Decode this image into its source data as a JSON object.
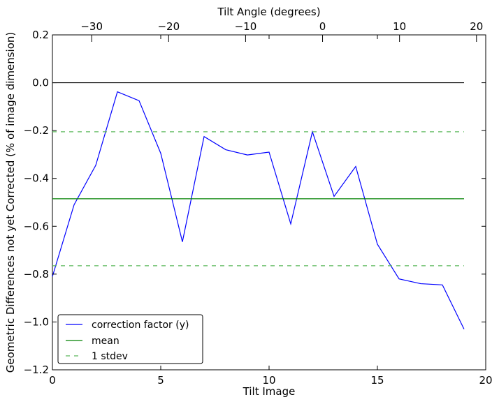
{
  "chart_data": {
    "type": "line",
    "xlabel": "Tilt Image",
    "ylabel": "Geometric Differences not yet Corrected (% of image dimension)",
    "top_xlabel": "Tilt Angle (degrees)",
    "xlim": [
      0,
      20
    ],
    "ylim": [
      -1.2,
      0.2
    ],
    "top_xlim": [
      -35.1,
      21.2
    ],
    "x_ticks": [
      0,
      5,
      10,
      15,
      20
    ],
    "y_ticks": [
      -1.2,
      -1.0,
      -0.8,
      -0.6,
      -0.4,
      -0.2,
      0.0,
      0.2
    ],
    "top_x_ticks": [
      -30,
      -20,
      -10,
      0,
      10,
      20
    ],
    "x_tick_labels": [
      "0",
      "5",
      "10",
      "15",
      "20"
    ],
    "y_tick_labels": [
      "−1.2",
      "−1.0",
      "−0.8",
      "−0.6",
      "−0.4",
      "−0.2",
      "0.0",
      "0.2"
    ],
    "top_x_tick_labels": [
      "−30",
      "−20",
      "−10",
      "0",
      "10",
      "20"
    ],
    "grid": false,
    "legend_position": "bottom-left",
    "series": [
      {
        "name": "correction factor (y)",
        "color": "#0000ff",
        "style": "solid",
        "x": [
          0,
          1,
          2,
          3,
          4,
          5,
          6,
          7,
          8,
          9,
          10,
          11,
          12,
          13,
          14,
          15,
          16,
          17,
          18,
          19
        ],
        "values": [
          -0.81,
          -0.51,
          -0.345,
          -0.038,
          -0.075,
          -0.295,
          -0.665,
          -0.225,
          -0.28,
          -0.302,
          -0.29,
          -0.59,
          -0.205,
          -0.475,
          -0.35,
          -0.675,
          -0.82,
          -0.84,
          -0.845,
          -1.03
        ]
      },
      {
        "name": "",
        "color": "#000000",
        "style": "solid",
        "x": [
          0,
          19
        ],
        "values": [
          0.0,
          0.0
        ]
      },
      {
        "name": "mean",
        "color": "#008000",
        "style": "solid",
        "x": [
          0,
          19
        ],
        "values": [
          -0.485,
          -0.485
        ]
      },
      {
        "name": "1 stdev",
        "color": "#5cb85c",
        "style": "dashed",
        "x": [
          0,
          19
        ],
        "values": [
          -0.205,
          -0.205
        ]
      },
      {
        "name": "",
        "color": "#5cb85c",
        "style": "dashed",
        "x": [
          0,
          19
        ],
        "values": [
          -0.765,
          -0.765
        ]
      }
    ],
    "legend": [
      {
        "label": "correction factor (y)",
        "color": "#0000ff",
        "style": "solid"
      },
      {
        "label": "mean",
        "color": "#008000",
        "style": "solid"
      },
      {
        "label": "1 stdev",
        "color": "#5cb85c",
        "style": "dashed"
      }
    ]
  }
}
